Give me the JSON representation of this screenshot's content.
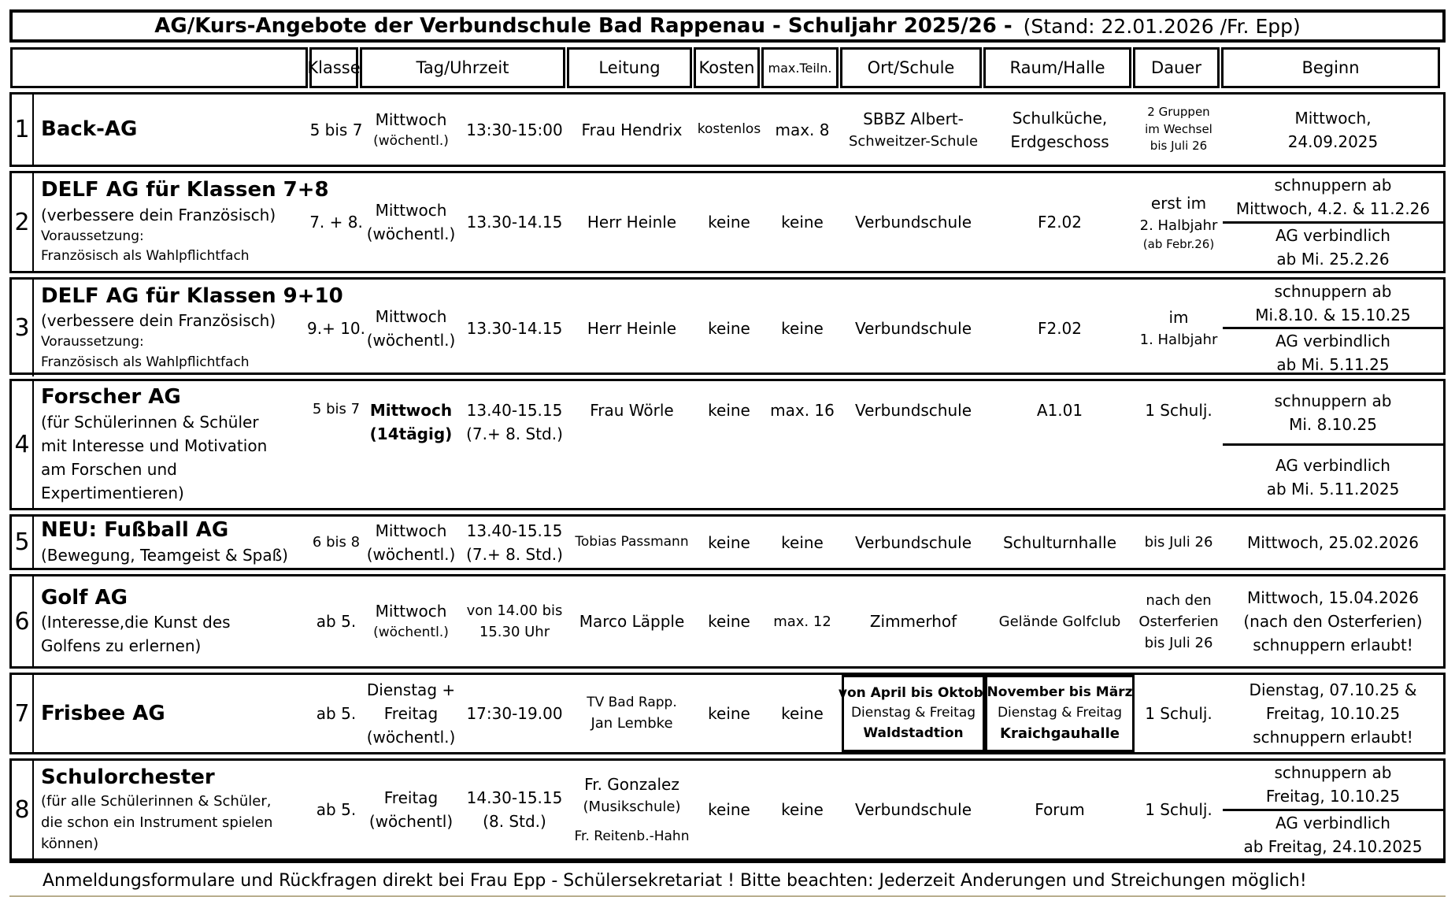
{
  "title": {
    "main": "AG/Kurs-Angebote der Verbundschule Bad Rappenau - Schuljahr 2025/26 -",
    "stand": "(Stand: 22.01.2026 /Fr. Epp)"
  },
  "header": {
    "empty": "",
    "klasse": "Klasse",
    "tag": "Tag/Uhrzeit",
    "leitung": "Leitung",
    "kosten": "Kosten",
    "max": "max.Teiln.",
    "ort": "Ort/Schule",
    "raum": "Raum/Halle",
    "dauer": "Dauer",
    "beginn": "Beginn"
  },
  "colors": {
    "ink": "#000000",
    "paper": "#ffffff"
  },
  "rows": [
    {
      "num": "1",
      "name": "Back-AG",
      "desc": [],
      "klasse": [
        {
          "t": "5 bis 7"
        }
      ],
      "tag": [
        {
          "t": "Mittwoch"
        },
        {
          "t": "(wöchentl.)",
          "c": "s"
        }
      ],
      "zeit": [
        {
          "t": "13:30-15:00"
        }
      ],
      "leitung": [
        {
          "t": "Frau Hendrix"
        }
      ],
      "kosten": [
        {
          "t": "kostenlos",
          "c": "s"
        }
      ],
      "max": [
        {
          "t": "max. 8"
        }
      ],
      "ort": [
        {
          "t": "SBBZ Albert-"
        },
        {
          "t": "Schweitzer-Schule",
          "c": "m"
        }
      ],
      "raum": [
        {
          "t": "Schulküche,"
        },
        {
          "t": "Erdgeschoss"
        }
      ],
      "dauer": [
        {
          "t": "2 Gruppen",
          "c": "xs"
        },
        {
          "t": "im Wechsel",
          "c": "xs"
        },
        {
          "t": "bis Juli 26",
          "c": "xs"
        }
      ],
      "beginn": {
        "lines": [
          {
            "t": "Mittwoch,"
          },
          {
            "t": "24.09.2025"
          }
        ]
      }
    },
    {
      "num": "2",
      "name": "DELF AG für Klassen 7+8",
      "desc": [
        {
          "t": "(verbessere dein Französisch)"
        },
        {
          "t": "Voraussetzung:",
          "c": "s"
        },
        {
          "t": "Französisch als Wahlpflichtfach",
          "c": "s"
        }
      ],
      "klasse": [
        {
          "t": "7. + 8."
        }
      ],
      "tag": [
        {
          "t": "Mittwoch"
        },
        {
          "t": "(wöchentl.)"
        }
      ],
      "zeit": [
        {
          "t": "13.30-14.15"
        }
      ],
      "leitung": [
        {
          "t": "Herr Heinle"
        }
      ],
      "kosten": [
        {
          "t": "keine"
        }
      ],
      "max": [
        {
          "t": "keine"
        }
      ],
      "ort": [
        {
          "t": "Verbundschule"
        }
      ],
      "raum": [
        {
          "t": "F2.02"
        }
      ],
      "dauer": [
        {
          "t": "erst im"
        },
        {
          "t": "2. Halbjahr",
          "c": "m"
        },
        {
          "t": "(ab Febr.26)",
          "c": "xs"
        }
      ],
      "beginn": {
        "top": [
          {
            "t": "schnuppern ab"
          },
          {
            "t": "Mittwoch,  4.2. & 11.2.26"
          }
        ],
        "bottom": [
          {
            "t": "AG verbindlich"
          },
          {
            "t": "ab Mi. 25.2.26"
          }
        ]
      }
    },
    {
      "num": "3",
      "name": "DELF AG für Klassen 9+10",
      "desc": [
        {
          "t": "(verbessere dein Französisch)"
        },
        {
          "t": "Voraussetzung:",
          "c": "s"
        },
        {
          "t": "Französisch als Wahlpflichtfach",
          "c": "s"
        }
      ],
      "klasse": [
        {
          "t": "9.+ 10."
        }
      ],
      "tag": [
        {
          "t": "Mittwoch"
        },
        {
          "t": "(wöchentl.)"
        }
      ],
      "zeit": [
        {
          "t": "13.30-14.15"
        }
      ],
      "leitung": [
        {
          "t": "Herr Heinle"
        }
      ],
      "kosten": [
        {
          "t": "keine"
        }
      ],
      "max": [
        {
          "t": "keine"
        }
      ],
      "ort": [
        {
          "t": "Verbundschule"
        }
      ],
      "raum": [
        {
          "t": "F2.02"
        }
      ],
      "dauer": [
        {
          "t": "im"
        },
        {
          "t": "1. Halbjahr",
          "c": "m"
        }
      ],
      "beginn": {
        "top": [
          {
            "t": "schnuppern ab"
          },
          {
            "t": "Mi.8.10. & 15.10.25"
          }
        ],
        "bottom": [
          {
            "t": "AG verbindlich"
          },
          {
            "t": "ab Mi. 5.11.25"
          }
        ]
      }
    },
    {
      "num": "4",
      "name": "Forscher AG",
      "align": "upper",
      "desc": [
        {
          "t": "(für Schülerinnen & Schüler"
        },
        {
          "t": "mit Interesse und Motivation"
        },
        {
          "t": "am Forschen und"
        },
        {
          "t": "Expertimentieren)"
        }
      ],
      "klasse": [
        {
          "t": "5 bis 7",
          "c": "m"
        }
      ],
      "tag": [
        {
          "t": "Mittwoch",
          "c": "b"
        },
        {
          "t": "(14tägig)",
          "c": "b"
        }
      ],
      "zeit": [
        {
          "t": "13.40-15.15"
        },
        {
          "t": "(7.+ 8. Std.)"
        }
      ],
      "leitung": [
        {
          "t": "Frau Wörle"
        }
      ],
      "kosten": [
        {
          "t": "keine"
        }
      ],
      "max": [
        {
          "t": "max. 16"
        }
      ],
      "ort": [
        {
          "t": "Verbundschule"
        }
      ],
      "raum": [
        {
          "t": "A1.01"
        }
      ],
      "dauer": [
        {
          "t": "1 Schulj."
        }
      ],
      "beginn": {
        "top": [
          {
            "t": "schnuppern ab"
          },
          {
            "t": "Mi. 8.10.25"
          }
        ],
        "bottom": [
          {
            "t": "AG verbindlich"
          },
          {
            "t": "ab Mi. 5.11.2025"
          }
        ]
      }
    },
    {
      "num": "5",
      "name": "NEU: Fußball AG",
      "desc": [
        {
          "t": "(Bewegung, Teamgeist & Spaß)"
        }
      ],
      "klasse": [
        {
          "t": "6 bis 8",
          "c": "m"
        }
      ],
      "tag": [
        {
          "t": "Mittwoch"
        },
        {
          "t": "(wöchentl.)"
        }
      ],
      "zeit": [
        {
          "t": "13.40-15.15"
        },
        {
          "t": "(7.+ 8. Std.)"
        }
      ],
      "leitung": [
        {
          "t": "Tobias Passmann",
          "c": "s"
        }
      ],
      "kosten": [
        {
          "t": "keine"
        }
      ],
      "max": [
        {
          "t": "keine"
        }
      ],
      "ort": [
        {
          "t": "Verbundschule"
        }
      ],
      "raum": [
        {
          "t": "Schulturnhalle"
        }
      ],
      "dauer": [
        {
          "t": "bis Juli 26",
          "c": "m"
        }
      ],
      "beginn": {
        "lines": [
          {
            "t": "Mittwoch, 25.02.2026"
          }
        ]
      }
    },
    {
      "num": "6",
      "name": "Golf AG",
      "desc": [
        {
          "t": "(Interesse,die Kunst des"
        },
        {
          "t": "Golfens zu erlernen)"
        }
      ],
      "klasse": [
        {
          "t": "ab 5."
        }
      ],
      "tag": [
        {
          "t": "Mittwoch"
        },
        {
          "t": "(wöchentl.)",
          "c": "s"
        }
      ],
      "zeit": [
        {
          "t": "von 14.00 bis",
          "c": "m"
        },
        {
          "t": "15.30 Uhr",
          "c": "m"
        }
      ],
      "leitung": [
        {
          "t": "Marco Läpple"
        }
      ],
      "kosten": [
        {
          "t": "keine"
        }
      ],
      "max": [
        {
          "t": "max. 12",
          "c": "m"
        }
      ],
      "ort": [
        {
          "t": "Zimmerhof"
        }
      ],
      "raum": [
        {
          "t": "Gelände Golfclub",
          "c": "m"
        }
      ],
      "dauer": [
        {
          "t": "nach den",
          "c": "m"
        },
        {
          "t": "Osterferien",
          "c": "m"
        },
        {
          "t": "bis Juli 26",
          "c": "m"
        }
      ],
      "beginn": {
        "lines": [
          {
            "t": "Mittwoch, 15.04.2026"
          },
          {
            "t": "(nach den Osterferien)"
          },
          {
            "t": "schnuppern erlaubt!"
          }
        ]
      }
    },
    {
      "num": "7",
      "name": "Frisbee AG",
      "boxed": true,
      "desc": [],
      "klasse": [
        {
          "t": "ab 5."
        }
      ],
      "tag": [
        {
          "t": "Dienstag +"
        },
        {
          "t": "Freitag"
        },
        {
          "t": "(wöchentl.)"
        }
      ],
      "zeit": [
        {
          "t": "17:30-19.00"
        }
      ],
      "leitung": [
        {
          "t": "TV Bad Rapp.",
          "c": "s"
        },
        {
          "t": "Jan Lembke",
          "c": "m"
        }
      ],
      "kosten": [
        {
          "t": "keine"
        }
      ],
      "max": [
        {
          "t": "keine"
        }
      ],
      "ort": [
        {
          "t": "von April bis Oktob.",
          "c": "b s"
        },
        {
          "t": "Dienstag & Freitag",
          "c": "s"
        },
        {
          "t": "Waldstadtion",
          "c": "b s"
        }
      ],
      "raum": [
        {
          "t": "November bis März",
          "c": "b s"
        },
        {
          "t": "Dienstag & Freitag",
          "c": "s"
        },
        {
          "t": "Kraichgauhalle",
          "c": "b m"
        }
      ],
      "dauer": [
        {
          "t": "1 Schulj."
        }
      ],
      "beginn": {
        "lines": [
          {
            "t": "Dienstag, 07.10.25 &"
          },
          {
            "t": "Freitag, 10.10.25"
          },
          {
            "t": "schnuppern erlaubt!"
          }
        ]
      }
    },
    {
      "num": "8",
      "name": "Schulorchester",
      "desc": [
        {
          "t": "(für alle Schülerinnen & Schüler,",
          "c": "m"
        },
        {
          "t": "die schon ein Instrument spielen",
          "c": "m"
        },
        {
          "t": "können)",
          "c": "m"
        }
      ],
      "klasse": [
        {
          "t": "ab 5."
        }
      ],
      "tag": [
        {
          "t": "Freitag"
        },
        {
          "t": "(wöchentl)"
        }
      ],
      "zeit": [
        {
          "t": "14.30-15.15"
        },
        {
          "t": "(8. Std.)"
        }
      ],
      "leitung": [
        {
          "t": "Fr. Gonzalez"
        },
        {
          "t": "(Musikschule)",
          "c": "m"
        },
        {
          "t": "Fr. Reitenb.-Hahn",
          "c": "s g"
        }
      ],
      "kosten": [
        {
          "t": "keine"
        }
      ],
      "max": [
        {
          "t": "keine"
        }
      ],
      "ort": [
        {
          "t": "Verbundschule"
        }
      ],
      "raum": [
        {
          "t": "Forum"
        }
      ],
      "dauer": [
        {
          "t": "1 Schulj."
        }
      ],
      "beginn": {
        "top": [
          {
            "t": "schnuppern ab"
          },
          {
            "t": "Freitag,  10.10.25"
          }
        ],
        "bottom": [
          {
            "t": "AG verbindlich"
          },
          {
            "t": "ab Freitag, 24.10.2025"
          }
        ]
      }
    }
  ],
  "footer": "Anmeldungsformulare und Rückfragen direkt bei Frau Epp - Schülersekretariat !  Bitte beachten: Jederzeit Anderungen und Streichungen möglich!"
}
